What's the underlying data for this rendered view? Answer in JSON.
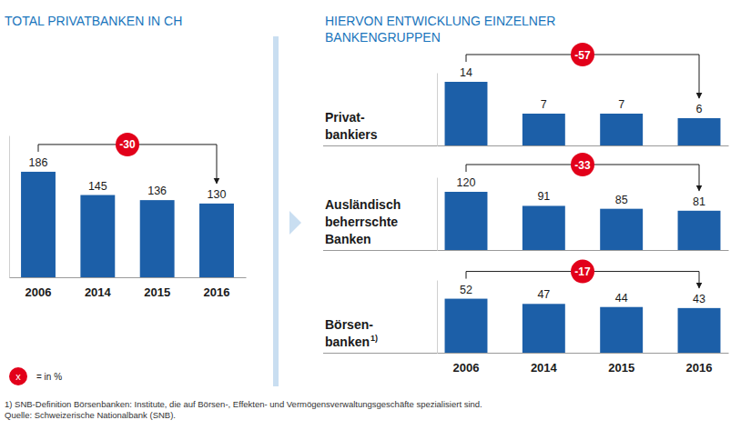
{
  "chart_data": [
    {
      "type": "bar",
      "title": "TOTAL PRIVATBANKEN IN CH",
      "categories": [
        "2006",
        "2014",
        "2015",
        "2016"
      ],
      "values": [
        186,
        145,
        136,
        130
      ],
      "color": "#1c5fa8",
      "ylim": [
        0,
        250
      ],
      "data_labels": true,
      "tick_labels": "x",
      "grid": false,
      "change_pct": -30
    },
    {
      "type": "bar",
      "title": "Privat-\nbankiers",
      "categories": [
        "2006",
        "2014",
        "2015",
        "2016"
      ],
      "values": [
        14,
        7,
        7,
        6
      ],
      "color": "#1c5fa8",
      "ylim": [
        0,
        16
      ],
      "data_labels": true,
      "tick_labels": false,
      "grid": false,
      "change_pct": -57
    },
    {
      "type": "bar",
      "title": "Ausländisch\nbeherrschte\nBanken",
      "categories": [
        "2006",
        "2014",
        "2015",
        "2016"
      ],
      "values": [
        120,
        91,
        85,
        81
      ],
      "color": "#1c5fa8",
      "ylim": [
        0,
        150
      ],
      "data_labels": true,
      "tick_labels": false,
      "grid": false,
      "change_pct": -33
    },
    {
      "type": "bar",
      "title": "Börsen-\nbanken",
      "title_note": "1)",
      "categories": [
        "2006",
        "2014",
        "2015",
        "2016"
      ],
      "values": [
        52,
        47,
        44,
        43
      ],
      "color": "#1c5fa8",
      "ylim": [
        0,
        70
      ],
      "data_labels": true,
      "tick_labels": "x",
      "grid": false,
      "change_pct": -17
    }
  ],
  "page": {
    "panel_title": "HIERVON ENTWICKLUNG EINZELNER\nBANKENGRUPPEN",
    "legend_symbol": "x",
    "legend_text": "= in %",
    "footnotes": [
      "1) SNB-Definition Börsenbanken: Institute, die auf Börsen-, Effekten- und Vermögensverwaltungsgeschäfte spezialisiert sind.",
      "Quelle: Schweizerische Nationalbank (SNB)."
    ]
  }
}
